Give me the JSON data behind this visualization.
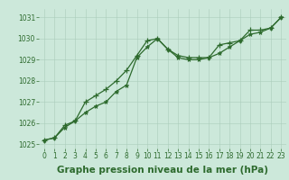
{
  "xlabel": "Graphe pression niveau de la mer (hPa)",
  "x_values": [
    0,
    1,
    2,
    3,
    4,
    5,
    6,
    7,
    8,
    9,
    10,
    11,
    12,
    13,
    14,
    15,
    16,
    17,
    18,
    19,
    20,
    21,
    22,
    23
  ],
  "series1": [
    1025.2,
    1025.3,
    1025.8,
    1026.1,
    1026.5,
    1026.8,
    1027.0,
    1027.5,
    1027.8,
    1029.1,
    1029.6,
    1030.0,
    1029.5,
    1029.1,
    1029.0,
    1029.0,
    1029.1,
    1029.3,
    1029.6,
    1029.9,
    1030.2,
    1030.3,
    1030.5,
    1031.0
  ],
  "series2": [
    1025.2,
    1025.3,
    1025.9,
    1026.1,
    1027.0,
    1027.3,
    1027.6,
    1028.0,
    1028.5,
    1029.2,
    1029.9,
    1030.0,
    1029.5,
    1029.2,
    1029.1,
    1029.1,
    1029.1,
    1029.7,
    1029.8,
    1029.9,
    1030.4,
    1030.4,
    1030.5,
    1031.0
  ],
  "bg_color": "#cce8da",
  "grid_color": "#aaccbb",
  "line_color": "#2d6a2d",
  "tick_label_color": "#2d6a2d",
  "xlabel_color": "#2d6a2d",
  "ylim": [
    1024.8,
    1031.4
  ],
  "yticks": [
    1025,
    1026,
    1027,
    1028,
    1029,
    1030,
    1031
  ],
  "xticks": [
    0,
    1,
    2,
    3,
    4,
    5,
    6,
    7,
    8,
    9,
    10,
    11,
    12,
    13,
    14,
    15,
    16,
    17,
    18,
    19,
    20,
    21,
    22,
    23
  ],
  "xlabel_fontsize": 7.5,
  "tick_fontsize": 5.5,
  "xlabel_fontweight": "bold"
}
